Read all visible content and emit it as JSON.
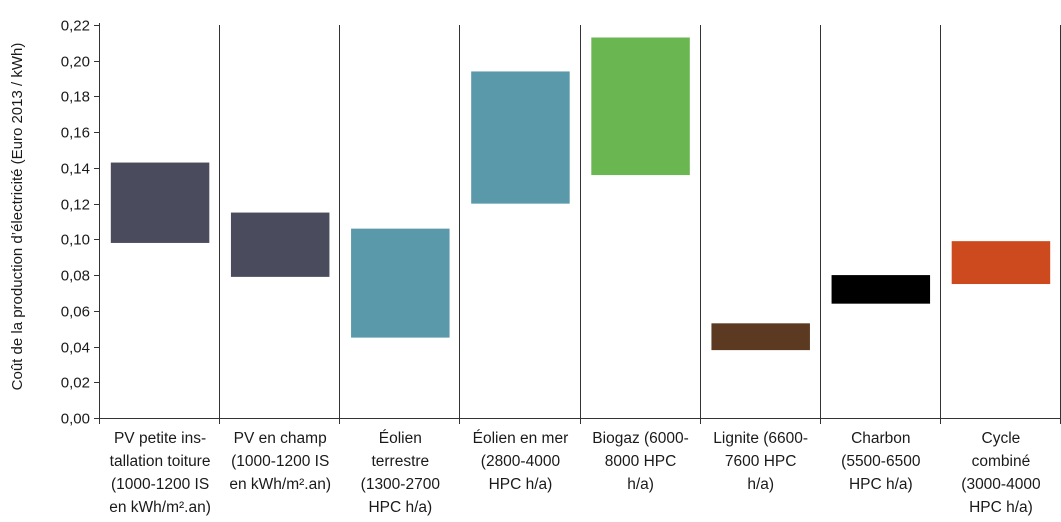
{
  "chart_data": {
    "type": "floating-bar",
    "ylabel": "Coût de la production d’électricité (Euro 2013 / kWh)",
    "ylim": [
      0,
      0.22
    ],
    "yticks": [
      "0,00",
      "0,02",
      "0,04",
      "0,06",
      "0,08",
      "0,10",
      "0,12",
      "0,14",
      "0,16",
      "0,18",
      "0,20",
      "0,22"
    ],
    "grid": "vertical-category-separators",
    "categories": [
      {
        "lines": [
          "PV petite ins-",
          "tallation toiture",
          "(1000-1200 IS",
          "en kWh/m².an)"
        ],
        "low": 0.098,
        "high": 0.143,
        "color": "#4a4c5d"
      },
      {
        "lines": [
          "PV en champ",
          "(1000-1200 IS",
          "en kWh/m².an)"
        ],
        "low": 0.079,
        "high": 0.115,
        "color": "#4a4c5d"
      },
      {
        "lines": [
          "Éolien",
          "terrestre",
          "(1300-2700",
          "HPC h/a)"
        ],
        "low": 0.045,
        "high": 0.106,
        "color": "#5a99aa"
      },
      {
        "lines": [
          "Éolien en mer",
          "(2800-4000",
          "HPC h/a)"
        ],
        "low": 0.12,
        "high": 0.194,
        "color": "#5a99aa"
      },
      {
        "lines": [
          "Biogaz (6000-",
          "8000 HPC",
          "h/a)"
        ],
        "low": 0.136,
        "high": 0.213,
        "color": "#6ab651"
      },
      {
        "lines": [
          "Lignite (6600-",
          "7600 HPC",
          "h/a)"
        ],
        "low": 0.038,
        "high": 0.053,
        "color": "#5b3a21"
      },
      {
        "lines": [
          "Charbon",
          "(5500-6500",
          "HPC h/a)"
        ],
        "low": 0.064,
        "high": 0.08,
        "color": "#000000"
      },
      {
        "lines": [
          "Cycle",
          "combiné",
          "(3000-4000",
          "HPC h/a)"
        ],
        "low": 0.075,
        "high": 0.099,
        "color": "#cc4a1e"
      }
    ]
  }
}
